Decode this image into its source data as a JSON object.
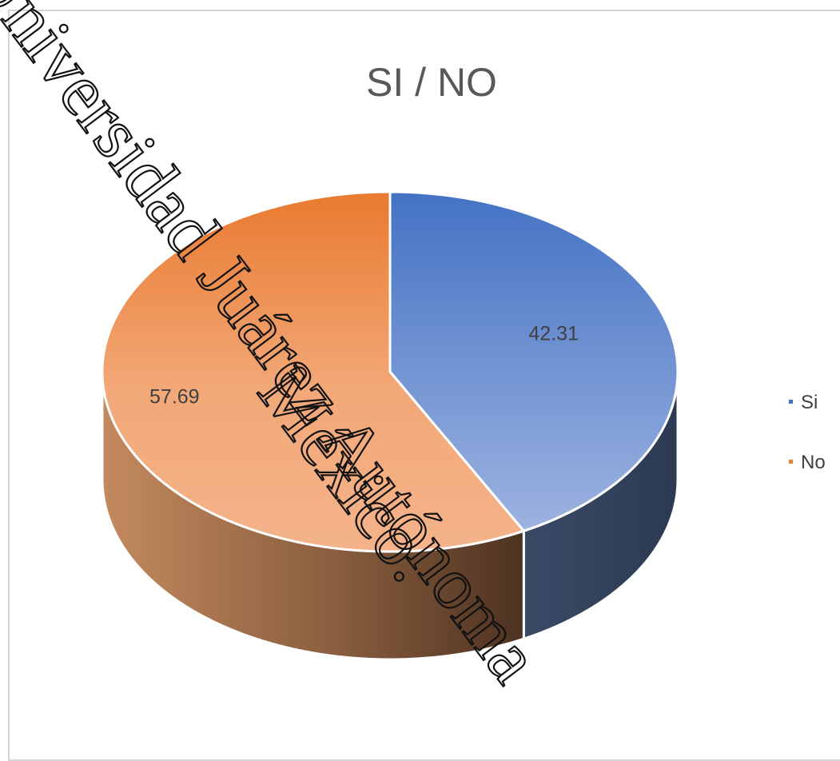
{
  "chart_data": {
    "type": "pie",
    "title": "SI / NO",
    "categories": [
      "Si",
      "No"
    ],
    "values": [
      42.31,
      57.69
    ],
    "data_labels": [
      "42.31",
      "57.69"
    ],
    "colors": [
      "#4472c4",
      "#ed7d31"
    ],
    "legend_placement": "right",
    "style": "3d"
  },
  "watermark": {
    "line1": "Universidad Juárez Autónoma",
    "line2": "México."
  }
}
